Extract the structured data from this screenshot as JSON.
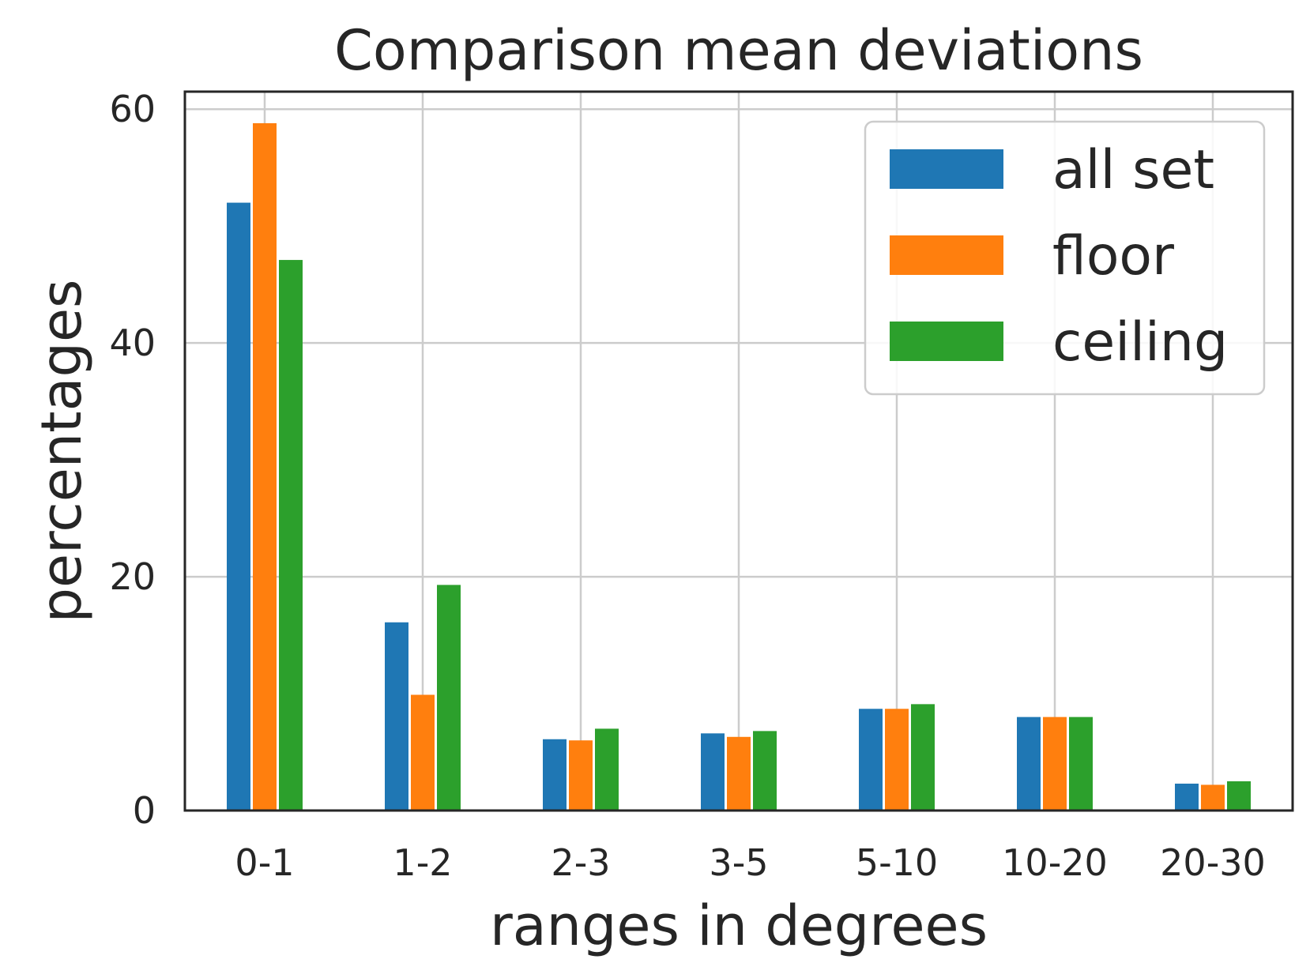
{
  "chart_data": {
    "type": "bar",
    "title": "Comparison mean deviations",
    "xlabel": "ranges in degrees",
    "ylabel": "percentages",
    "categories": [
      "0-1",
      "1-2",
      "2-3",
      "3-5",
      "5-10",
      "10-20",
      "20-30"
    ],
    "series": [
      {
        "name": "all set",
        "color": "#1f77b4",
        "values": [
          52.0,
          16.1,
          6.1,
          6.6,
          8.7,
          8.0,
          2.3
        ]
      },
      {
        "name": "floor",
        "color": "#ff7f0e",
        "values": [
          58.8,
          9.9,
          6.0,
          6.3,
          8.7,
          8.0,
          2.2
        ]
      },
      {
        "name": "ceiling",
        "color": "#2ca02c",
        "values": [
          47.1,
          19.3,
          7.0,
          6.8,
          9.1,
          8.0,
          2.5
        ]
      }
    ],
    "ylim": [
      0,
      61.5
    ],
    "yticks": [
      0,
      20,
      40,
      60
    ],
    "grid": true,
    "legend_position": "top-right"
  }
}
